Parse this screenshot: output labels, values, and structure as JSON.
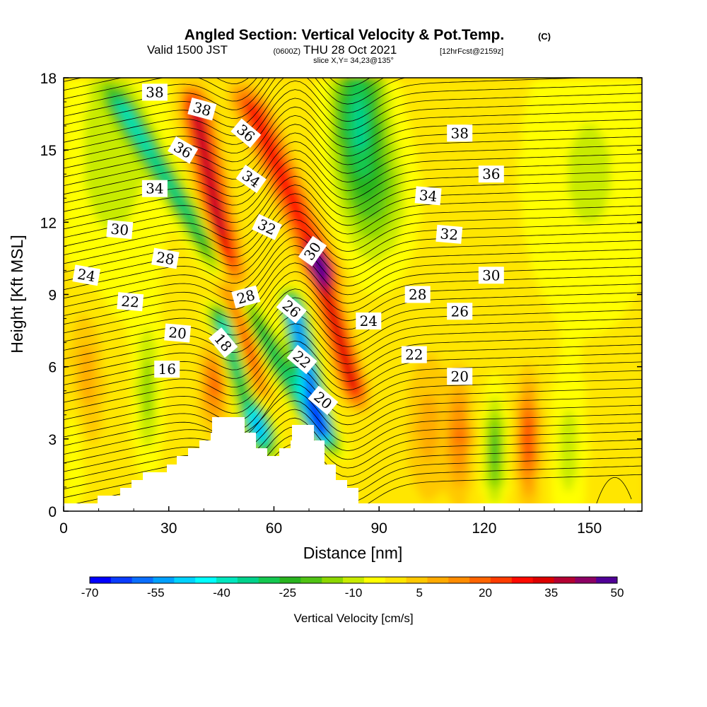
{
  "chart_data": {
    "type": "heatmap",
    "title": "Angled Section: Vertical Velocity & Pot.Temp.",
    "title_mark": "(C)",
    "subtitle": {
      "prefix": "Valid 1500 JST",
      "utc": "(0600Z)",
      "date": "THU 28 Oct 2021",
      "forecast": "[12hrFcst@2159z]"
    },
    "slice_label": "slice X,Y= 34,23@135°",
    "xlabel": "Distance [nm]",
    "ylabel": "Height [Kft MSL]",
    "xlim": [
      0,
      165
    ],
    "ylim": [
      0,
      18
    ],
    "xticks": [
      "0",
      "30",
      "60",
      "90",
      "120",
      "150"
    ],
    "yticks": [
      "0",
      "3",
      "6",
      "9",
      "12",
      "15",
      "18"
    ],
    "colorbar": {
      "label": "Vertical Velocity [cm/s]",
      "ticks": [
        "-70",
        "-55",
        "-40",
        "-25",
        "-10",
        "5",
        "20",
        "35",
        "50"
      ],
      "levels": [
        -70,
        -65,
        -60,
        -55,
        -50,
        -45,
        -40,
        -35,
        -30,
        -25,
        -20,
        -15,
        -10,
        -5,
        0,
        5,
        10,
        15,
        20,
        25,
        30,
        35,
        40,
        45,
        50
      ],
      "colors": [
        "#0000ff",
        "#0a3cff",
        "#0a6eff",
        "#00a0ff",
        "#00d2ff",
        "#00ffff",
        "#00e6be",
        "#00d28c",
        "#14c850",
        "#28b41e",
        "#50c314",
        "#8cd700",
        "#c8eb00",
        "#ffff00",
        "#ffe600",
        "#ffc800",
        "#ffaa00",
        "#ff8c00",
        "#ff6400",
        "#ff3c00",
        "#ff0a00",
        "#dc0000",
        "#b40032",
        "#8c0064",
        "#500096"
      ]
    },
    "contour_labels": [
      {
        "x": 26,
        "y": 17.4,
        "text": "38",
        "angle": 0
      },
      {
        "x": 39.5,
        "y": 16.7,
        "text": "38",
        "angle": 15
      },
      {
        "x": 52,
        "y": 15.7,
        "text": "36",
        "angle": 40
      },
      {
        "x": 34,
        "y": 15.0,
        "text": "36",
        "angle": 30
      },
      {
        "x": 53.5,
        "y": 13.8,
        "text": "34",
        "angle": 35
      },
      {
        "x": 26,
        "y": 13.4,
        "text": "34",
        "angle": 0
      },
      {
        "x": 58,
        "y": 11.8,
        "text": "32",
        "angle": 25
      },
      {
        "x": 16,
        "y": 11.7,
        "text": "30",
        "angle": 5
      },
      {
        "x": 71,
        "y": 10.8,
        "text": "30",
        "angle": -55
      },
      {
        "x": 29,
        "y": 10.5,
        "text": "28",
        "angle": 10
      },
      {
        "x": 6.5,
        "y": 9.8,
        "text": "24",
        "angle": 10
      },
      {
        "x": 52,
        "y": 8.9,
        "text": "28",
        "angle": -15
      },
      {
        "x": 65,
        "y": 8.4,
        "text": "26",
        "angle": 40
      },
      {
        "x": 19,
        "y": 8.7,
        "text": "22",
        "angle": 5
      },
      {
        "x": 32.5,
        "y": 7.4,
        "text": "20",
        "angle": 5
      },
      {
        "x": 45.5,
        "y": 7.0,
        "text": "18",
        "angle": 50
      },
      {
        "x": 68,
        "y": 6.3,
        "text": "22",
        "angle": 40
      },
      {
        "x": 29.5,
        "y": 5.9,
        "text": "16",
        "angle": 0
      },
      {
        "x": 74,
        "y": 4.6,
        "text": "20",
        "angle": 40
      },
      {
        "x": 113,
        "y": 15.7,
        "text": "38",
        "angle": 0
      },
      {
        "x": 122,
        "y": 14.0,
        "text": "36",
        "angle": 0
      },
      {
        "x": 104,
        "y": 13.1,
        "text": "34",
        "angle": 5
      },
      {
        "x": 110,
        "y": 11.5,
        "text": "32",
        "angle": 5
      },
      {
        "x": 122,
        "y": 9.8,
        "text": "30",
        "angle": 0
      },
      {
        "x": 101,
        "y": 9.0,
        "text": "28",
        "angle": 0
      },
      {
        "x": 113,
        "y": 8.3,
        "text": "26",
        "angle": 0
      },
      {
        "x": 87,
        "y": 7.9,
        "text": "24",
        "angle": 0
      },
      {
        "x": 100,
        "y": 6.5,
        "text": "22",
        "angle": 0
      },
      {
        "x": 113,
        "y": 5.6,
        "text": "20",
        "angle": 0
      }
    ]
  }
}
